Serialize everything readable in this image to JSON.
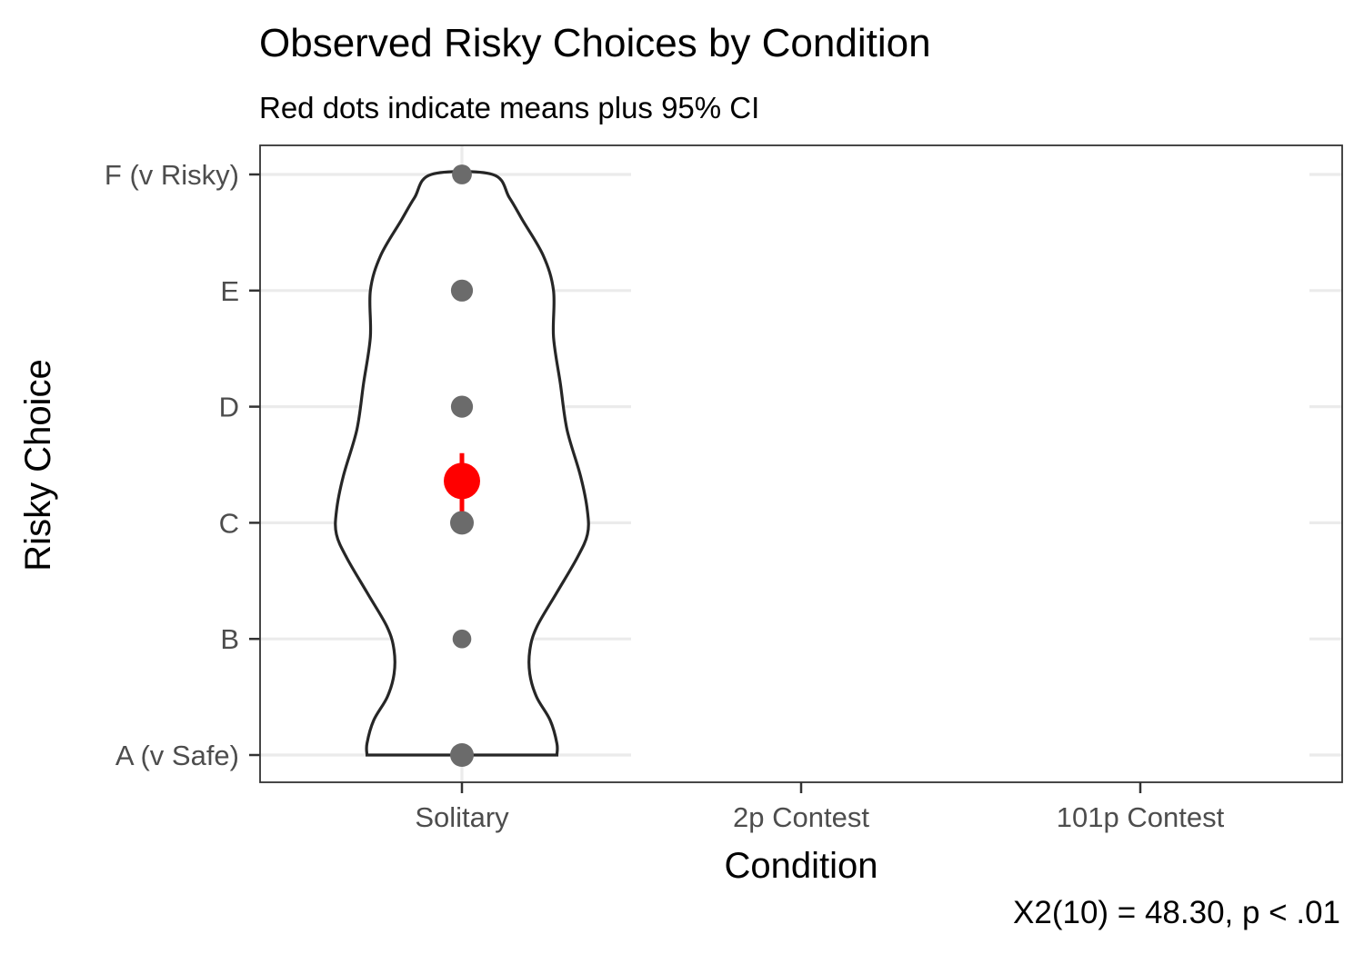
{
  "chart_data": {
    "type": "violin",
    "title": "Observed Risky Choices by Condition",
    "subtitle": "Red dots indicate means plus 95% CI",
    "xlabel": "Condition",
    "ylabel": "Risky Choice",
    "caption": "X2(10) = 48.30, p < .01",
    "categories": [
      "Solitary",
      "2p Contest",
      "101p Contest"
    ],
    "y_levels": [
      "A (v Safe)",
      "B",
      "C",
      "D",
      "E",
      "F (v Risky)"
    ],
    "ylim": [
      1,
      6
    ],
    "grid": true,
    "colors": {
      "points": "#6b6b6b",
      "mean": "#ff0000",
      "outline": "#262626",
      "grid": "#ebebeb",
      "panel_border": "#333333"
    },
    "series": [
      {
        "category": "Solitary",
        "points": [
          {
            "level": 1,
            "n_relative": 1.0
          },
          {
            "level": 2,
            "n_relative": 0.55
          },
          {
            "level": 3,
            "n_relative": 1.0
          },
          {
            "level": 4,
            "n_relative": 0.85
          },
          {
            "level": 5,
            "n_relative": 0.85
          },
          {
            "level": 6,
            "n_relative": 0.65
          }
        ],
        "mean": 3.36,
        "ci": [
          3.1,
          3.6
        ],
        "violin": [
          {
            "y": 1.0,
            "w": 0.28
          },
          {
            "y": 1.1,
            "w": 0.28
          },
          {
            "y": 1.3,
            "w": 0.26
          },
          {
            "y": 1.5,
            "w": 0.22
          },
          {
            "y": 1.7,
            "w": 0.2
          },
          {
            "y": 1.9,
            "w": 0.2
          },
          {
            "y": 2.1,
            "w": 0.22
          },
          {
            "y": 2.4,
            "w": 0.28
          },
          {
            "y": 2.7,
            "w": 0.34
          },
          {
            "y": 2.9,
            "w": 0.37
          },
          {
            "y": 3.1,
            "w": 0.37
          },
          {
            "y": 3.4,
            "w": 0.35
          },
          {
            "y": 3.8,
            "w": 0.31
          },
          {
            "y": 4.2,
            "w": 0.29
          },
          {
            "y": 4.6,
            "w": 0.27
          },
          {
            "y": 5.0,
            "w": 0.27
          },
          {
            "y": 5.3,
            "w": 0.24
          },
          {
            "y": 5.6,
            "w": 0.18
          },
          {
            "y": 5.8,
            "w": 0.14
          },
          {
            "y": 6.0,
            "w": 0.09
          }
        ]
      }
    ]
  }
}
